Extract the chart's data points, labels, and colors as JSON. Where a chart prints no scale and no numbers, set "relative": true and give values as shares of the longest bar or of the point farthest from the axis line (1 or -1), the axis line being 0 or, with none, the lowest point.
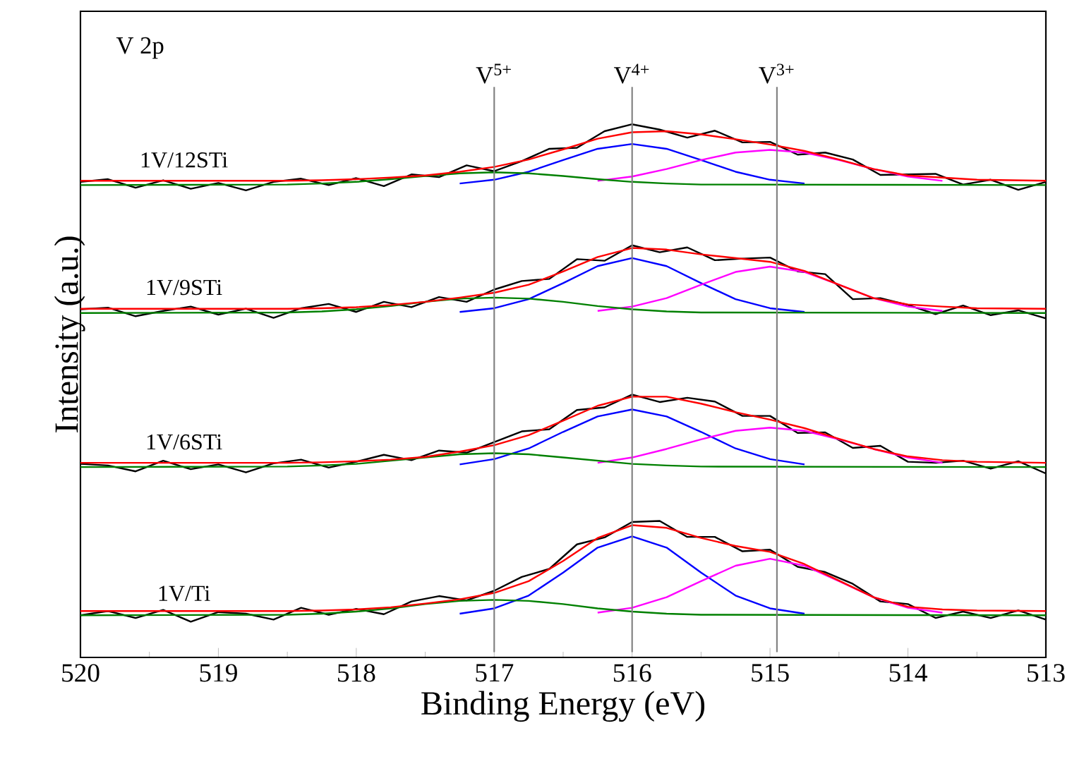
{
  "chart_data": {
    "type": "line",
    "relative": true,
    "xlabel": "Binding Energy (eV)",
    "ylabel": "Intensity (a.u.)",
    "xlim": [
      520,
      513
    ],
    "xticks": [
      520,
      519,
      518,
      517,
      516,
      515,
      514,
      513
    ],
    "annotations": [
      "V 2p"
    ],
    "ref_lines": [
      {
        "axis": "x",
        "value": 517.0,
        "label": "V$^{5+}$",
        "color": "#808080"
      },
      {
        "axis": "x",
        "value": 516.0,
        "label": "V$^{4+}$",
        "color": "#808080"
      },
      {
        "axis": "x",
        "value": 514.95,
        "label": "V$^{3+}$",
        "color": "#808080"
      }
    ],
    "series": [
      {
        "name": "1V/Ti",
        "color": "#000000",
        "x": [
          520,
          519.8,
          519.6,
          519.4,
          519.2,
          519.0,
          518.8,
          518.6,
          518.4,
          518.2,
          518.0,
          517.8,
          517.6,
          517.4,
          517.2,
          517.0,
          516.8,
          516.6,
          516.4,
          516.2,
          516.0,
          515.8,
          515.6,
          515.4,
          515.2,
          515.0,
          514.8,
          514.6,
          514.4,
          514.2,
          514.0,
          513.8,
          513.6,
          513.4,
          513.2,
          513.0
        ],
        "values": [
          0.079,
          0.087,
          0.074,
          0.089,
          0.067,
          0.085,
          0.082,
          0.071,
          0.093,
          0.08,
          0.091,
          0.081,
          0.105,
          0.115,
          0.107,
          0.125,
          0.151,
          0.166,
          0.212,
          0.225,
          0.254,
          0.256,
          0.226,
          0.226,
          0.199,
          0.202,
          0.17,
          0.16,
          0.138,
          0.105,
          0.1,
          0.074,
          0.086,
          0.074,
          0.088,
          0.071
        ]
      },
      {
        "color": "#0000ff",
        "x": [
          517.25,
          517,
          516.75,
          516.5,
          516.25,
          516,
          515.75,
          515.5,
          515.25,
          515,
          514.75
        ],
        "values": [
          0.082,
          0.092,
          0.116,
          0.159,
          0.206,
          0.227,
          0.206,
          0.159,
          0.116,
          0.092,
          0.082
        ]
      },
      {
        "color": "#ff00ff",
        "x": [
          516.25,
          516,
          515.75,
          515.5,
          515.25,
          515,
          514.75,
          514.5,
          514.25,
          514,
          513.75
        ],
        "values": [
          0.084,
          0.093,
          0.113,
          0.143,
          0.172,
          0.185,
          0.172,
          0.143,
          0.113,
          0.093,
          0.084
        ]
      },
      {
        "color": "#008000",
        "x": [
          520,
          518.5,
          518.25,
          518,
          517.75,
          517.5,
          517.25,
          517,
          516.75,
          516.5,
          516.25,
          516,
          515.75,
          515.5,
          513
        ],
        "values": [
          0.079,
          0.08,
          0.082,
          0.086,
          0.092,
          0.1,
          0.106,
          0.108,
          0.106,
          0.1,
          0.092,
          0.086,
          0.082,
          0.08,
          0.079
        ]
      },
      {
        "color": "#ff0000",
        "x": [
          520,
          519,
          518.5,
          518.25,
          518,
          517.75,
          517.5,
          517.25,
          517,
          516.75,
          516.5,
          516.25,
          516,
          515.75,
          515.5,
          515.25,
          515,
          514.75,
          514.5,
          514.25,
          514,
          513.75,
          513.5,
          513
        ],
        "values": [
          0.087,
          0.087,
          0.087,
          0.088,
          0.09,
          0.094,
          0.101,
          0.109,
          0.121,
          0.143,
          0.181,
          0.224,
          0.248,
          0.243,
          0.224,
          0.209,
          0.198,
          0.175,
          0.144,
          0.113,
          0.095,
          0.09,
          0.088,
          0.087
        ]
      },
      {
        "name": "1V/6STi",
        "color": "#000000",
        "x": [
          520,
          519.8,
          519.6,
          519.4,
          519.2,
          519.0,
          518.8,
          518.6,
          518.4,
          518.2,
          518.0,
          517.8,
          517.6,
          517.4,
          517.2,
          517.0,
          516.8,
          516.6,
          516.4,
          516.2,
          516.0,
          515.8,
          515.6,
          515.4,
          515.2,
          515.0,
          514.8,
          514.6,
          514.4,
          514.2,
          514.0,
          513.8,
          513.6,
          513.4,
          513.2,
          513.0
        ],
        "values": [
          0.363,
          0.36,
          0.349,
          0.369,
          0.353,
          0.362,
          0.347,
          0.364,
          0.371,
          0.356,
          0.367,
          0.38,
          0.37,
          0.388,
          0.384,
          0.404,
          0.424,
          0.428,
          0.464,
          0.469,
          0.493,
          0.479,
          0.487,
          0.48,
          0.453,
          0.453,
          0.421,
          0.422,
          0.393,
          0.397,
          0.367,
          0.365,
          0.369,
          0.354,
          0.368,
          0.345
        ]
      },
      {
        "color": "#0000ff",
        "x": [
          517.25,
          517,
          516.75,
          516.5,
          516.25,
          516,
          515.75,
          515.5,
          515.25,
          515,
          514.75
        ],
        "values": [
          0.362,
          0.372,
          0.392,
          0.423,
          0.452,
          0.465,
          0.452,
          0.423,
          0.392,
          0.372,
          0.362
        ]
      },
      {
        "color": "#ff00ff",
        "x": [
          516.25,
          516,
          515.75,
          515.5,
          515.25,
          515,
          514.75,
          514.5,
          514.25,
          514,
          513.75
        ],
        "values": [
          0.365,
          0.375,
          0.391,
          0.409,
          0.425,
          0.431,
          0.425,
          0.409,
          0.391,
          0.375,
          0.365
        ]
      },
      {
        "color": "#008000",
        "x": [
          520,
          518.5,
          518.25,
          518,
          517.75,
          517.5,
          517.25,
          517,
          516.75,
          516.5,
          516.25,
          516,
          515.75,
          515.5,
          513
        ],
        "values": [
          0.357,
          0.358,
          0.36,
          0.363,
          0.369,
          0.375,
          0.381,
          0.383,
          0.381,
          0.375,
          0.369,
          0.363,
          0.36,
          0.358,
          0.357
        ]
      },
      {
        "color": "#ff0000",
        "x": [
          520,
          519,
          518.5,
          518.25,
          518,
          517.75,
          517.5,
          517.25,
          517,
          516.75,
          516.5,
          516.25,
          516,
          515.75,
          515.5,
          515.25,
          515,
          514.75,
          514.5,
          514.25,
          514,
          513.75,
          513.5,
          513
        ],
        "values": [
          0.365,
          0.365,
          0.365,
          0.366,
          0.368,
          0.371,
          0.376,
          0.386,
          0.398,
          0.417,
          0.444,
          0.472,
          0.489,
          0.489,
          0.476,
          0.46,
          0.446,
          0.43,
          0.41,
          0.391,
          0.377,
          0.37,
          0.367,
          0.365
        ]
      },
      {
        "name": "1V/9STi",
        "color": "#000000",
        "x": [
          520,
          519.8,
          519.6,
          519.4,
          519.2,
          519.0,
          518.8,
          518.6,
          518.4,
          518.2,
          518.0,
          517.8,
          517.6,
          517.4,
          517.2,
          517.0,
          516.8,
          516.6,
          516.4,
          516.2,
          516.0,
          515.8,
          515.6,
          515.4,
          515.2,
          515.0,
          514.8,
          514.6,
          514.4,
          514.2,
          514.0,
          513.8,
          513.6,
          513.4,
          513.2,
          513.0
        ],
        "values": [
          0.653,
          0.656,
          0.64,
          0.65,
          0.658,
          0.643,
          0.654,
          0.637,
          0.655,
          0.663,
          0.648,
          0.667,
          0.657,
          0.676,
          0.667,
          0.69,
          0.706,
          0.71,
          0.747,
          0.744,
          0.773,
          0.76,
          0.769,
          0.745,
          0.748,
          0.75,
          0.724,
          0.719,
          0.672,
          0.674,
          0.661,
          0.644,
          0.66,
          0.642,
          0.651,
          0.636
        ]
      },
      {
        "color": "#0000ff",
        "x": [
          517.25,
          517,
          516.75,
          516.5,
          516.25,
          516,
          515.75,
          515.5,
          515.25,
          515,
          514.75
        ],
        "values": [
          0.648,
          0.655,
          0.672,
          0.702,
          0.734,
          0.749,
          0.734,
          0.702,
          0.672,
          0.655,
          0.648
        ]
      },
      {
        "color": "#ff00ff",
        "x": [
          516.25,
          516,
          515.75,
          515.5,
          515.25,
          515,
          514.75,
          514.5,
          514.25,
          514,
          513.75
        ],
        "values": [
          0.65,
          0.658,
          0.674,
          0.699,
          0.723,
          0.733,
          0.723,
          0.699,
          0.674,
          0.658,
          0.65
        ]
      },
      {
        "color": "#008000",
        "x": [
          520,
          518.5,
          518.25,
          518,
          517.75,
          517.5,
          517.25,
          517,
          516.75,
          516.5,
          516.25,
          516,
          515.75,
          515.5,
          513
        ],
        "values": [
          0.646,
          0.647,
          0.649,
          0.653,
          0.659,
          0.667,
          0.673,
          0.675,
          0.673,
          0.667,
          0.659,
          0.653,
          0.649,
          0.647,
          0.646
        ]
      },
      {
        "color": "#ff0000",
        "x": [
          520,
          519,
          518.5,
          518.25,
          518,
          517.75,
          517.5,
          517.25,
          517,
          516.75,
          516.5,
          516.25,
          516,
          515.75,
          515.5,
          515.25,
          515,
          514.75,
          514.5,
          514.25,
          514,
          513.75,
          513.5,
          513
        ],
        "values": [
          0.654,
          0.654,
          0.654,
          0.655,
          0.657,
          0.661,
          0.667,
          0.675,
          0.684,
          0.699,
          0.724,
          0.751,
          0.768,
          0.765,
          0.756,
          0.749,
          0.742,
          0.725,
          0.699,
          0.674,
          0.662,
          0.658,
          0.655,
          0.654
        ]
      },
      {
        "name": "1V/12STi",
        "color": "#000000",
        "x": [
          520,
          519.8,
          519.6,
          519.4,
          519.2,
          519.0,
          518.8,
          518.6,
          518.4,
          518.2,
          518.0,
          517.8,
          517.6,
          517.4,
          517.2,
          517.0,
          516.8,
          516.6,
          516.4,
          516.2,
          516.0,
          515.8,
          515.6,
          515.4,
          515.2,
          515.0,
          514.8,
          514.6,
          514.4,
          514.2,
          514.0,
          513.8,
          513.6,
          513.4,
          513.2,
          513.0
        ],
        "values": [
          0.892,
          0.897,
          0.881,
          0.895,
          0.879,
          0.89,
          0.876,
          0.892,
          0.898,
          0.886,
          0.899,
          0.884,
          0.906,
          0.901,
          0.923,
          0.912,
          0.931,
          0.954,
          0.956,
          0.987,
          1.0,
          0.99,
          0.975,
          0.988,
          0.966,
          0.967,
          0.943,
          0.947,
          0.934,
          0.905,
          0.906,
          0.907,
          0.887,
          0.896,
          0.877,
          0.892
        ]
      },
      {
        "color": "#0000ff",
        "x": [
          517.25,
          517,
          516.75,
          516.5,
          516.25,
          516,
          515.75,
          515.5,
          515.25,
          515,
          514.75
        ],
        "values": [
          0.889,
          0.896,
          0.911,
          0.933,
          0.954,
          0.963,
          0.954,
          0.933,
          0.911,
          0.896,
          0.889
        ]
      },
      {
        "color": "#ff00ff",
        "x": [
          516.25,
          516,
          515.75,
          515.5,
          515.25,
          515,
          514.75,
          514.5,
          514.25,
          514,
          513.75
        ],
        "values": [
          0.894,
          0.902,
          0.916,
          0.933,
          0.947,
          0.952,
          0.947,
          0.933,
          0.916,
          0.902,
          0.894
        ]
      },
      {
        "color": "#008000",
        "x": [
          520,
          518.5,
          518.25,
          518,
          517.75,
          517.5,
          517.25,
          517,
          516.75,
          516.5,
          516.25,
          516,
          515.75,
          515.5,
          513
        ],
        "values": [
          0.886,
          0.887,
          0.889,
          0.892,
          0.897,
          0.903,
          0.908,
          0.91,
          0.908,
          0.903,
          0.897,
          0.892,
          0.889,
          0.887,
          0.886
        ]
      },
      {
        "color": "#ff0000",
        "x": [
          520,
          519,
          518.5,
          518.25,
          518,
          517.75,
          517.5,
          517.25,
          517,
          516.75,
          516.5,
          516.25,
          516,
          515.75,
          515.5,
          515.25,
          515,
          514.75,
          514.5,
          514.25,
          514,
          513.75,
          513.5,
          513
        ],
        "values": [
          0.894,
          0.894,
          0.894,
          0.895,
          0.897,
          0.9,
          0.904,
          0.911,
          0.92,
          0.934,
          0.953,
          0.973,
          0.985,
          0.987,
          0.981,
          0.972,
          0.962,
          0.95,
          0.934,
          0.916,
          0.904,
          0.9,
          0.896,
          0.894
        ]
      }
    ]
  }
}
